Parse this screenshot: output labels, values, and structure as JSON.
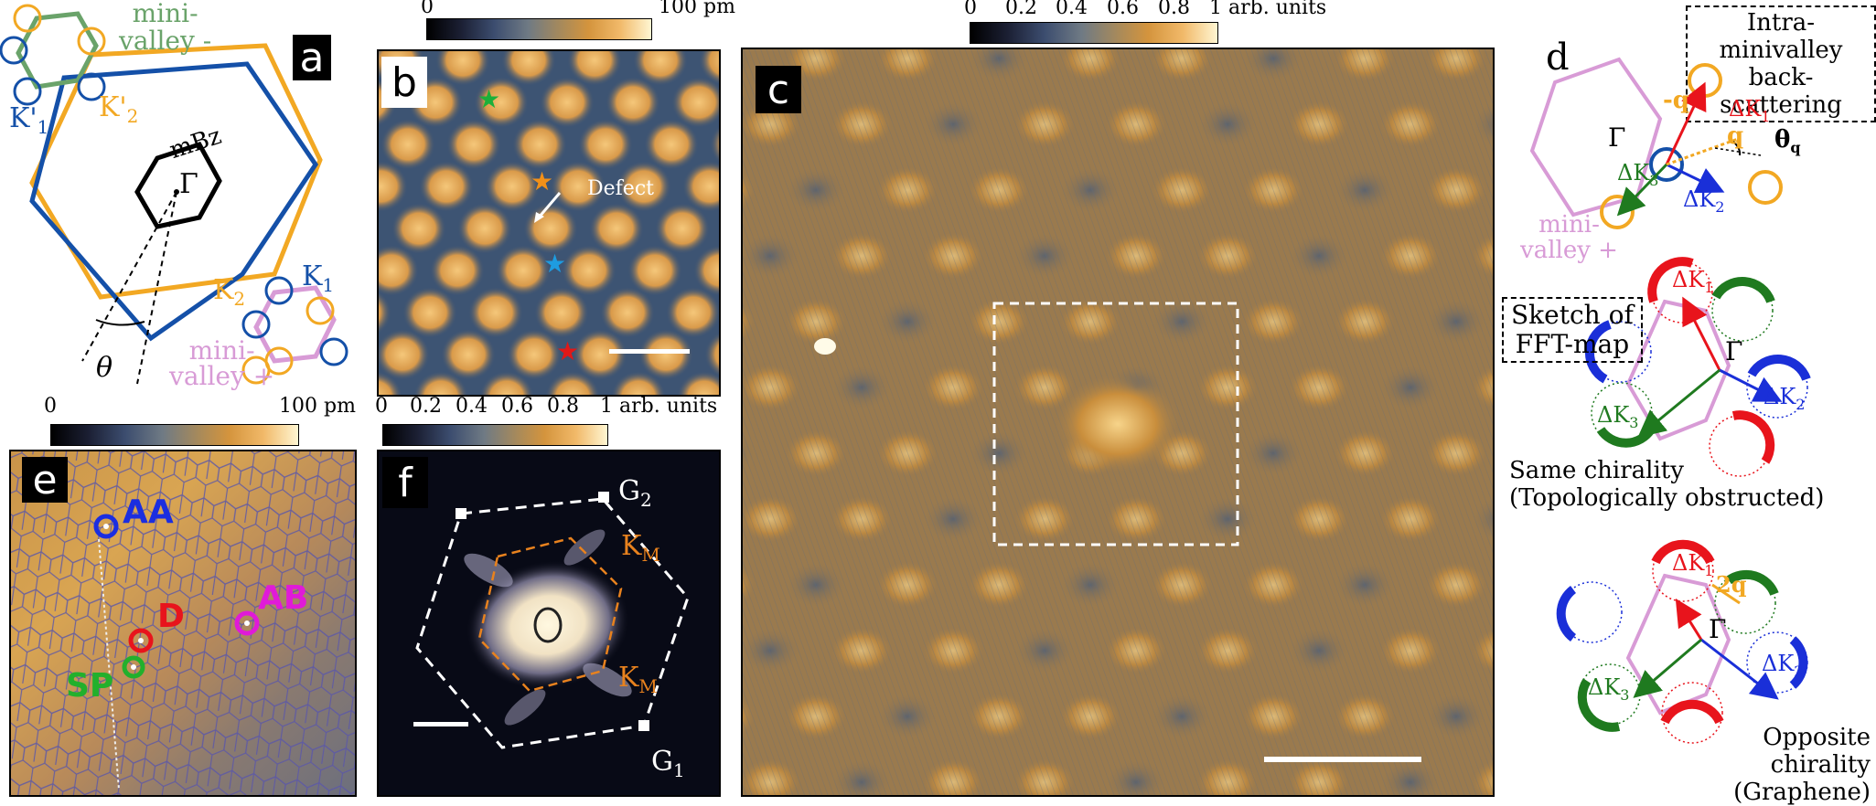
{
  "panel_a": {
    "letter": "a",
    "mini_valley_minus": [
      "mini-",
      "valley -"
    ],
    "k1_prime": "K'",
    "k1_prime_sub": "1",
    "k2_prime": "K'",
    "k2_prime_sub": "2",
    "mbz": "mBz",
    "gamma": "Γ",
    "k1": "K",
    "k1_sub": "1",
    "k2": "K",
    "k2_sub": "2",
    "theta": "θ",
    "mini_valley_plus": [
      "mini-",
      "valley +"
    ]
  },
  "panel_b": {
    "letter": "b",
    "cbar_min": "0",
    "cbar_max": "100 pm",
    "defect_label": "Defect"
  },
  "panel_c": {
    "letter": "c",
    "cbar_ticks": [
      "0",
      "0.2",
      "0.4",
      "0.6",
      "0.8",
      "1 arb. units"
    ]
  },
  "panel_d": {
    "letter": "d",
    "intra_box": [
      "Intra-minivalley",
      "back-scattering"
    ],
    "minus_q": "-q",
    "q": "q",
    "dk1": "ΔK",
    "dk1_sub": "1",
    "dk2": "ΔK",
    "dk2_sub": "2",
    "dk3": "ΔK",
    "dk3_sub": "3",
    "theta_q": "θ",
    "theta_q_sub": "q",
    "gamma": "Γ",
    "mini_valley_plus": [
      "mini-",
      "valley +"
    ],
    "sketch_box": [
      "Sketch of",
      "FFT-map"
    ],
    "same_chirality": [
      "Same chirality",
      "(Topologically obstructed)"
    ],
    "two_q": "2q",
    "opposite_chirality": [
      "Opposite chirality",
      "(Graphene)"
    ]
  },
  "panel_e": {
    "letter": "e",
    "cbar_min": "0",
    "cbar_max": "100 pm",
    "aa": "AA",
    "ab": "AB",
    "d": "D",
    "sp": "SP"
  },
  "panel_f": {
    "letter": "f",
    "cbar_ticks": [
      "0",
      "0.2",
      "0.4",
      "0.6",
      "0.8",
      "1 arb. units"
    ],
    "g1": "G",
    "g1_sub": "1",
    "g2": "G",
    "g2_sub": "2",
    "km": "K",
    "km_sub": "M"
  },
  "colors": {
    "orange_bz": "#f2a823",
    "blue_bz": "#1450a8",
    "green": "#1f7a1f",
    "pink": "#d89bd6",
    "red": "#e8141c",
    "blue_arrow": "#1a2fd8",
    "fft_orange": "#e8821e"
  }
}
